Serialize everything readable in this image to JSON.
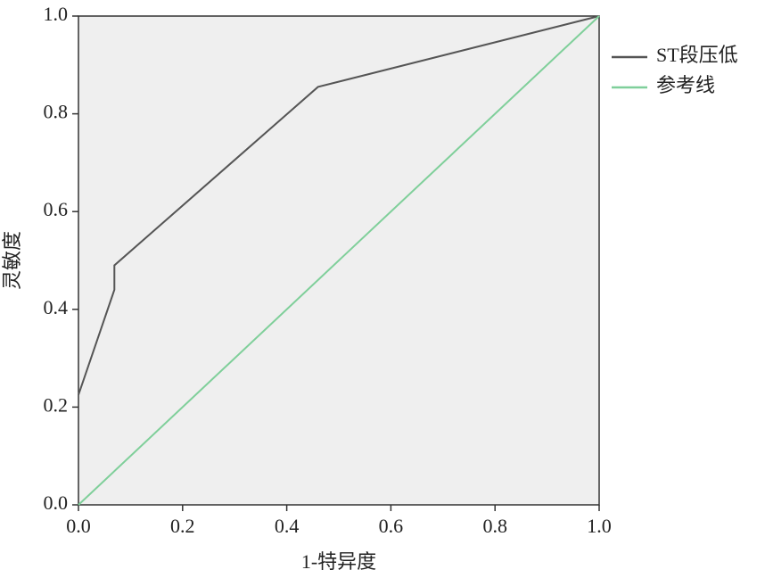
{
  "chart_data": {
    "type": "line",
    "x_label": "1-特异度",
    "y_label": "灵敏度",
    "series": [
      {
        "name": "ST段压低",
        "color": "#555555",
        "x": [
          0,
          0.069,
          0.069,
          0.46,
          1
        ],
        "values": [
          0.225,
          0.44,
          0.49,
          0.855,
          1
        ]
      },
      {
        "name": "参考线",
        "color": "#7fcf9a",
        "x": [
          0,
          1
        ],
        "values": [
          0,
          1
        ]
      }
    ],
    "xlim": [
      0,
      1
    ],
    "ylim": [
      0,
      1
    ],
    "xticks": [
      {
        "value": 0,
        "label": "0.0"
      },
      0.2,
      0.4,
      0.6,
      0.8,
      {
        "value": 1,
        "label": "1.0"
      }
    ],
    "yticks": [
      {
        "value": 0,
        "label": "0.0"
      },
      0.2,
      0.4,
      0.6,
      0.8,
      {
        "value": 1,
        "label": "1.0"
      }
    ],
    "plot_background": "#efefef",
    "legend": "right"
  }
}
